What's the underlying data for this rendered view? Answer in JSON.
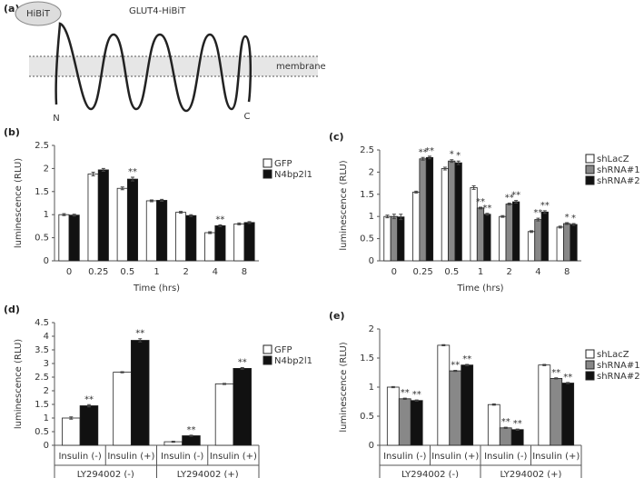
{
  "diagram": {
    "panel_label": "(a)",
    "tag": "HiBiT",
    "title": "GLUT4-HiBiT",
    "membrane": "membrane",
    "n_term": "N",
    "c_term": "C"
  },
  "chart_data": [
    {
      "type": "bar",
      "panel_label": "(b)",
      "ylabel": "luminescence (RLU)",
      "xlabel": "Time (hrs)",
      "categories": [
        "0",
        "0.25",
        "0.5",
        "1",
        "2",
        "4",
        "8"
      ],
      "series": [
        {
          "name": "GFP",
          "color": "#ffffff",
          "values": [
            1.0,
            1.88,
            1.57,
            1.3,
            1.05,
            0.61,
            0.8
          ],
          "errors": [
            0.02,
            0.04,
            0.03,
            0.02,
            0.02,
            0.02,
            0.02
          ],
          "significance": [
            null,
            null,
            null,
            null,
            null,
            null,
            null
          ]
        },
        {
          "name": "N4bp2l1",
          "color": "#111111",
          "values": [
            0.99,
            1.97,
            1.77,
            1.31,
            0.98,
            0.76,
            0.83
          ],
          "errors": [
            0.02,
            0.03,
            0.04,
            0.02,
            0.02,
            0.02,
            0.02
          ],
          "significance": [
            null,
            null,
            "**",
            null,
            null,
            "**",
            null
          ]
        }
      ],
      "ylim": [
        0,
        2.5
      ],
      "yticks": [
        0,
        0.5,
        1,
        1.5,
        2,
        2.5
      ]
    },
    {
      "type": "bar",
      "panel_label": "(c)",
      "ylabel": "luminescence (RLU)",
      "xlabel": "Time (hrs)",
      "categories": [
        "0",
        "0.25",
        "0.5",
        "1",
        "2",
        "4",
        "8"
      ],
      "series": [
        {
          "name": "shLacZ",
          "color": "#ffffff",
          "values": [
            1.0,
            1.55,
            2.08,
            1.65,
            1.0,
            0.66,
            0.76
          ],
          "errors": [
            0.03,
            0.02,
            0.03,
            0.04,
            0.02,
            0.02,
            0.02
          ],
          "significance": [
            null,
            null,
            null,
            null,
            null,
            null,
            null
          ]
        },
        {
          "name": "shRNA#1",
          "color": "#888888",
          "values": [
            1.0,
            2.3,
            2.25,
            1.19,
            1.28,
            0.93,
            0.84
          ],
          "errors": [
            0.05,
            0.03,
            0.03,
            0.02,
            0.02,
            0.03,
            0.02
          ],
          "significance": [
            null,
            "**",
            "*",
            "**",
            "**",
            "**",
            "*"
          ]
        },
        {
          "name": "shRNA#2",
          "color": "#111111",
          "values": [
            0.99,
            2.33,
            2.21,
            1.05,
            1.33,
            1.1,
            0.82
          ],
          "errors": [
            0.06,
            0.03,
            0.04,
            0.02,
            0.03,
            0.03,
            0.02
          ],
          "significance": [
            null,
            "**",
            "*",
            "**",
            "**",
            "**",
            "*"
          ]
        }
      ],
      "ylim": [
        0,
        2.5
      ],
      "yticks": [
        0,
        0.5,
        1,
        1.5,
        2,
        2.5
      ]
    },
    {
      "type": "bar",
      "panel_label": "(d)",
      "ylabel": "luminescence (RLU)",
      "categories": [
        "Insulin (-)",
        "Insulin (+)",
        "Insulin (-)",
        "Insulin (+)"
      ],
      "groups": [
        "LY294002 (-)",
        "LY294002 (+)"
      ],
      "series": [
        {
          "name": "GFP",
          "color": "#ffffff",
          "values": [
            1.0,
            2.68,
            0.13,
            2.25
          ],
          "errors": [
            0.04,
            0.02,
            0.02,
            0.02
          ],
          "significance": [
            null,
            null,
            null,
            null
          ]
        },
        {
          "name": "N4bp2l1",
          "color": "#111111",
          "values": [
            1.45,
            3.85,
            0.35,
            2.82
          ],
          "errors": [
            0.04,
            0.06,
            0.02,
            0.03
          ],
          "significance": [
            "**",
            "**",
            "**",
            "**"
          ]
        }
      ],
      "ylim": [
        0,
        4.5
      ],
      "yticks": [
        0,
        0.5,
        1,
        1.5,
        2,
        2.5,
        3,
        3.5,
        4,
        4.5
      ]
    },
    {
      "type": "bar",
      "panel_label": "(e)",
      "ylabel": "luminescence (RLU)",
      "categories": [
        "Insulin (-)",
        "Insulin (+)",
        "Insulin (-)",
        "Insulin (+)"
      ],
      "groups": [
        "LY294002 (-)",
        "LY294002 (+)"
      ],
      "series": [
        {
          "name": "shLacZ",
          "color": "#ffffff",
          "values": [
            1.0,
            1.72,
            0.7,
            1.38
          ],
          "errors": [
            0.01,
            0.01,
            0.01,
            0.01
          ],
          "significance": [
            null,
            null,
            null,
            null
          ]
        },
        {
          "name": "shRNA#1",
          "color": "#888888",
          "values": [
            0.8,
            1.28,
            0.3,
            1.15
          ],
          "errors": [
            0.01,
            0.01,
            0.01,
            0.01
          ],
          "significance": [
            "**",
            "**",
            "**",
            "**"
          ]
        },
        {
          "name": "shRNA#2",
          "color": "#111111",
          "values": [
            0.77,
            1.38,
            0.27,
            1.07
          ],
          "errors": [
            0.01,
            0.01,
            0.01,
            0.01
          ],
          "significance": [
            "**",
            "**",
            "**",
            "**"
          ]
        }
      ],
      "ylim": [
        0,
        2
      ],
      "yticks": [
        0,
        0.5,
        1,
        1.5,
        2
      ]
    }
  ]
}
